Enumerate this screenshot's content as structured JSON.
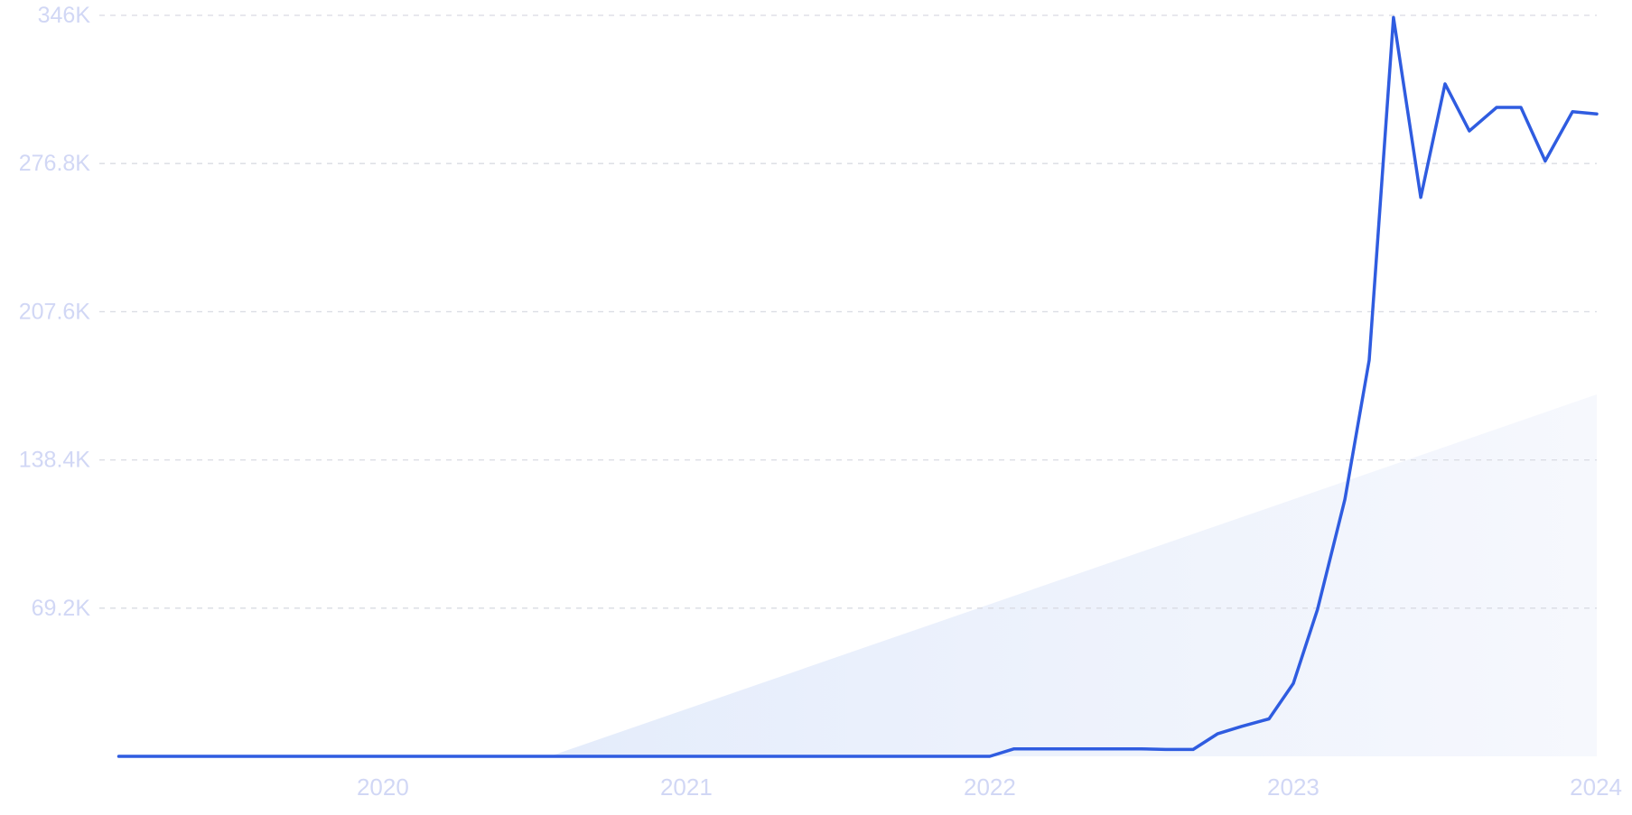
{
  "chart_data": {
    "type": "line",
    "title": "",
    "xlabel": "",
    "ylabel": "",
    "grid": true,
    "legend": "none",
    "xlim": [
      2019.1255,
      2024
    ],
    "ylim": [
      0,
      346000
    ],
    "y_ticks": [
      {
        "value": 69200,
        "label": "69.2K"
      },
      {
        "value": 138400,
        "label": "138.4K"
      },
      {
        "value": 207600,
        "label": "207.6K"
      },
      {
        "value": 276800,
        "label": "276.8K"
      },
      {
        "value": 346000,
        "label": "346K"
      }
    ],
    "x_ticks": [
      {
        "value": 2020,
        "label": "2020"
      },
      {
        "value": 2021,
        "label": "2021"
      },
      {
        "value": 2022,
        "label": "2022"
      },
      {
        "value": 2023,
        "label": "2023"
      },
      {
        "value": 2024,
        "label": "2024"
      }
    ],
    "series": [
      {
        "color": "#2f5ce0",
        "x": [
          2019.13,
          2019.5,
          2020.0,
          2020.5,
          2021.0,
          2021.5,
          2022.0,
          2022.08,
          2022.17,
          2022.25,
          2022.33,
          2022.42,
          2022.5,
          2022.58,
          2022.67,
          2022.75,
          2022.83,
          2022.92,
          2023.0,
          2023.08,
          2023.17,
          2023.25,
          2023.33,
          2023.42,
          2023.5,
          2023.58,
          2023.67,
          2023.75,
          2023.83,
          2023.92,
          2024.0
        ],
        "y": [
          0,
          0,
          0,
          0,
          0,
          0,
          0,
          3500,
          3500,
          3500,
          3500,
          3500,
          3500,
          3200,
          3200,
          10500,
          14000,
          17500,
          34000,
          68600,
          120000,
          185000,
          345000,
          261000,
          314000,
          292000,
          303000,
          303000,
          278000,
          301000,
          300000
        ]
      }
    ],
    "trend": {
      "color": "#e4ecfb",
      "x": [
        2020.55,
        2024.0
      ],
      "y": [
        0,
        169000
      ]
    }
  }
}
